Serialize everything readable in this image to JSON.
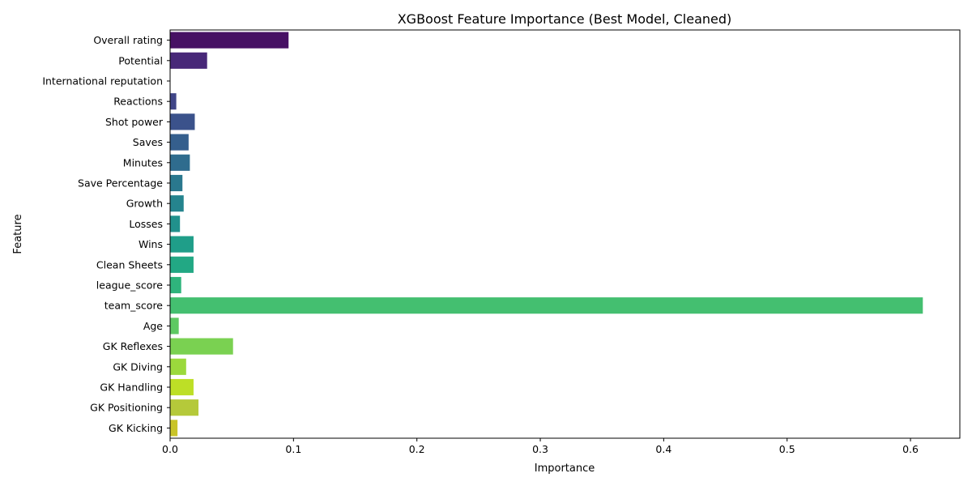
{
  "chart_data": {
    "type": "bar",
    "orientation": "horizontal",
    "title": "XGBoost Feature Importance (Best Model, Cleaned)",
    "xlabel": "Importance",
    "ylabel": "Feature",
    "xlim": [
      0,
      0.64
    ],
    "xticks": [
      0.0,
      0.1,
      0.2,
      0.3,
      0.4,
      0.5,
      0.6
    ],
    "xtick_labels": [
      "0.0",
      "0.1",
      "0.2",
      "0.3",
      "0.4",
      "0.5",
      "0.6"
    ],
    "grid": false,
    "colormap": "viridis",
    "categories": [
      "Overall rating",
      "Potential",
      "International reputation",
      "Reactions",
      "Shot power",
      "Saves",
      "Minutes",
      "Save Percentage",
      "Growth",
      "Losses",
      "Wins",
      "Clean Sheets",
      "league_score",
      "team_score",
      "Age",
      "GK Reflexes",
      "GK Diving",
      "GK Handling",
      "GK Positioning",
      "GK Kicking"
    ],
    "values": [
      0.096,
      0.03,
      0.0,
      0.005,
      0.02,
      0.015,
      0.016,
      0.01,
      0.011,
      0.008,
      0.019,
      0.019,
      0.009,
      0.61,
      0.007,
      0.051,
      0.013,
      0.019,
      0.023,
      0.006
    ],
    "colors": [
      "#471164",
      "#482878",
      "#453781",
      "#404688",
      "#3b528b",
      "#355f8d",
      "#2f6c8e",
      "#2a788e",
      "#25848e",
      "#21918c",
      "#1f9e89",
      "#22a884",
      "#2fb47c",
      "#44bf70",
      "#5ec962",
      "#7ad151",
      "#9bd93c",
      "#bddf26",
      "#b5c93a",
      "#c9c428"
    ]
  }
}
